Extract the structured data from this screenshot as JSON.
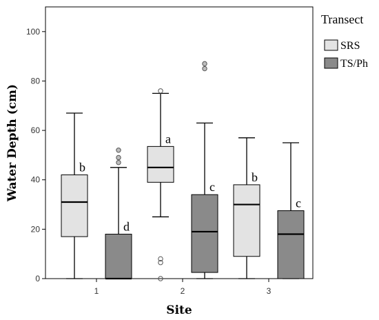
{
  "chart_data": {
    "type": "boxplot",
    "xlabel": "Site",
    "ylabel": "Water Depth (cm)",
    "categories": [
      "1",
      "2",
      "3"
    ],
    "ylim": [
      0,
      110
    ],
    "yticks": [
      0,
      20,
      40,
      60,
      80,
      100
    ],
    "grid": false,
    "legend": {
      "title": "Transect",
      "placement": "right",
      "entries": [
        {
          "name": "SRS",
          "color": "#e3e3e3"
        },
        {
          "name": "TS/Ph",
          "color": "#8a8a8a"
        }
      ]
    },
    "series": [
      {
        "name": "SRS",
        "color": "#e3e3e3",
        "boxes": [
          {
            "category": "1",
            "min": 0,
            "q1": 17,
            "median": 31,
            "q3": 42,
            "max": 67,
            "outliers": [],
            "letter": "b"
          },
          {
            "category": "2",
            "min": 25,
            "q1": 39,
            "median": 45,
            "q3": 53.5,
            "max": 75,
            "outliers": [
              76,
              8,
              6.5,
              0
            ],
            "letter": "a"
          },
          {
            "category": "3",
            "min": 0,
            "q1": 9,
            "median": 30,
            "q3": 38,
            "max": 57,
            "outliers": [],
            "letter": "b"
          }
        ]
      },
      {
        "name": "TS/Ph",
        "color": "#8a8a8a",
        "boxes": [
          {
            "category": "1",
            "min": 0,
            "q1": 0,
            "median": 0,
            "q3": 18,
            "max": 45,
            "outliers": [
              52,
              49,
              47
            ],
            "letter": "d"
          },
          {
            "category": "2",
            "min": 0,
            "q1": 2.5,
            "median": 19,
            "q3": 34,
            "max": 63,
            "outliers": [
              87,
              85
            ],
            "letter": "c"
          },
          {
            "category": "3",
            "min": 0,
            "q1": 0,
            "median": 18,
            "q3": 27.5,
            "max": 55,
            "outliers": [],
            "letter": "c"
          }
        ]
      }
    ]
  }
}
